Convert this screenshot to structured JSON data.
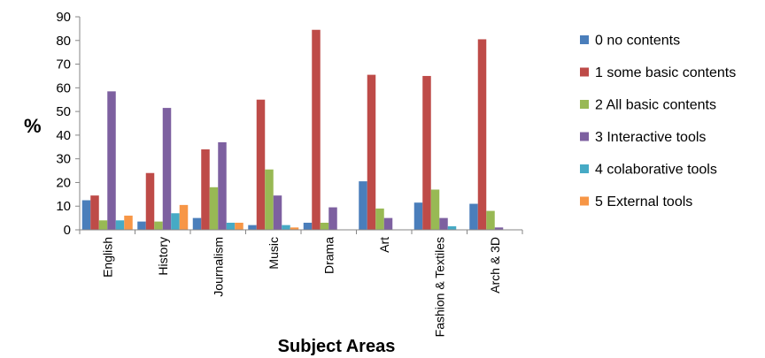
{
  "chart_data": {
    "type": "bar",
    "title": "",
    "xlabel": "Subject Areas",
    "ylabel": "%",
    "ylim": [
      0,
      90
    ],
    "yticks": [
      "0",
      "10",
      "20",
      "30",
      "40",
      "50",
      "60",
      "70",
      "80",
      "90"
    ],
    "grid": false,
    "legend_position": "right",
    "categories": [
      "English",
      "History",
      "Journalism",
      "Music",
      "Drama",
      "Art",
      "Fashion & Textiles",
      "Arch & 3D"
    ],
    "series": [
      {
        "name": "0 no contents",
        "color": "#4A7EBB",
        "values": [
          12.5,
          3.5,
          5,
          2,
          3,
          20.5,
          11.5,
          11
        ]
      },
      {
        "name": "1 some basic contents",
        "color": "#BE4B48",
        "values": [
          14.5,
          24,
          34,
          55,
          84.5,
          65.5,
          65,
          80.5
        ]
      },
      {
        "name": "2 All basic contents",
        "color": "#98B954",
        "values": [
          4,
          3.5,
          18,
          25.5,
          3,
          9,
          17,
          8
        ]
      },
      {
        "name": "3 Interactive tools",
        "color": "#7D60A0",
        "values": [
          58.5,
          51.5,
          37,
          14.5,
          9.5,
          5,
          5,
          1
        ]
      },
      {
        "name": "4 colaborative tools",
        "color": "#46AAC5",
        "values": [
          4,
          7,
          3,
          2,
          0,
          0,
          1.5,
          0
        ]
      },
      {
        "name": "5 External tools",
        "color": "#F79646",
        "values": [
          6,
          10.5,
          3,
          1,
          0,
          0,
          0,
          0
        ]
      }
    ]
  }
}
